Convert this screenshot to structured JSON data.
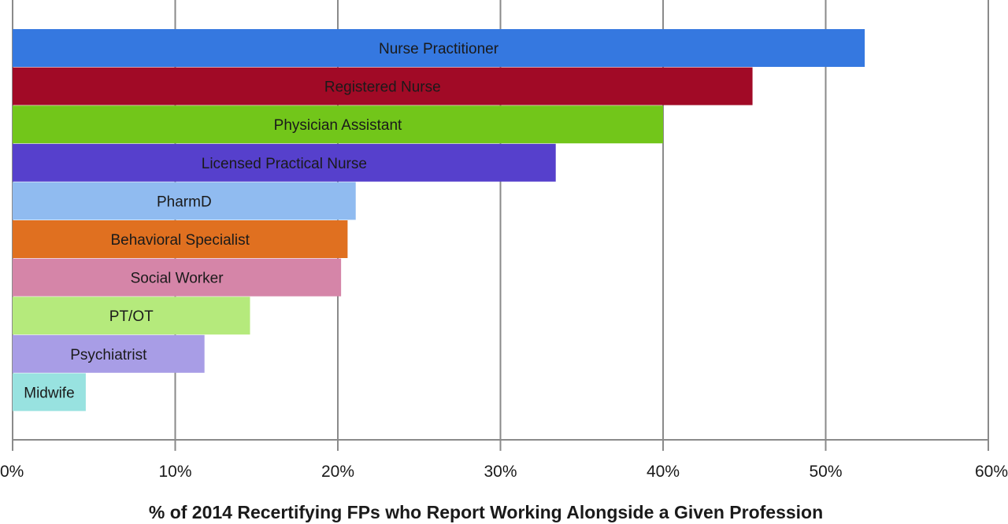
{
  "chart_data": {
    "type": "bar",
    "orientation": "horizontal",
    "title": "",
    "xlabel": "% of 2014 Recertifying FPs who Report Working Alongside a Given Profession",
    "ylabel": "",
    "xlim": [
      0,
      60
    ],
    "x_ticks": [
      "0%",
      "10%",
      "20%",
      "30%",
      "40%",
      "50%",
      "60%"
    ],
    "grid": "vertical",
    "legend": "none",
    "categories": [
      "Nurse Practitioner",
      "Registered Nurse",
      "Physician Assistant",
      "Licensed Practical Nurse",
      "PharmD",
      "Behavioral Specialist",
      "Social Worker",
      "PT/OT",
      "Psychiatrist",
      "Midwife"
    ],
    "values": [
      52.4,
      45.5,
      40.0,
      33.4,
      21.1,
      20.6,
      20.2,
      14.6,
      11.8,
      4.5
    ],
    "colors": [
      "#3578e0",
      "#a10a26",
      "#72c61a",
      "#5640cc",
      "#90bbf0",
      "#e07020",
      "#d585a8",
      "#b5ea7c",
      "#a89de6",
      "#98e2e0"
    ]
  }
}
